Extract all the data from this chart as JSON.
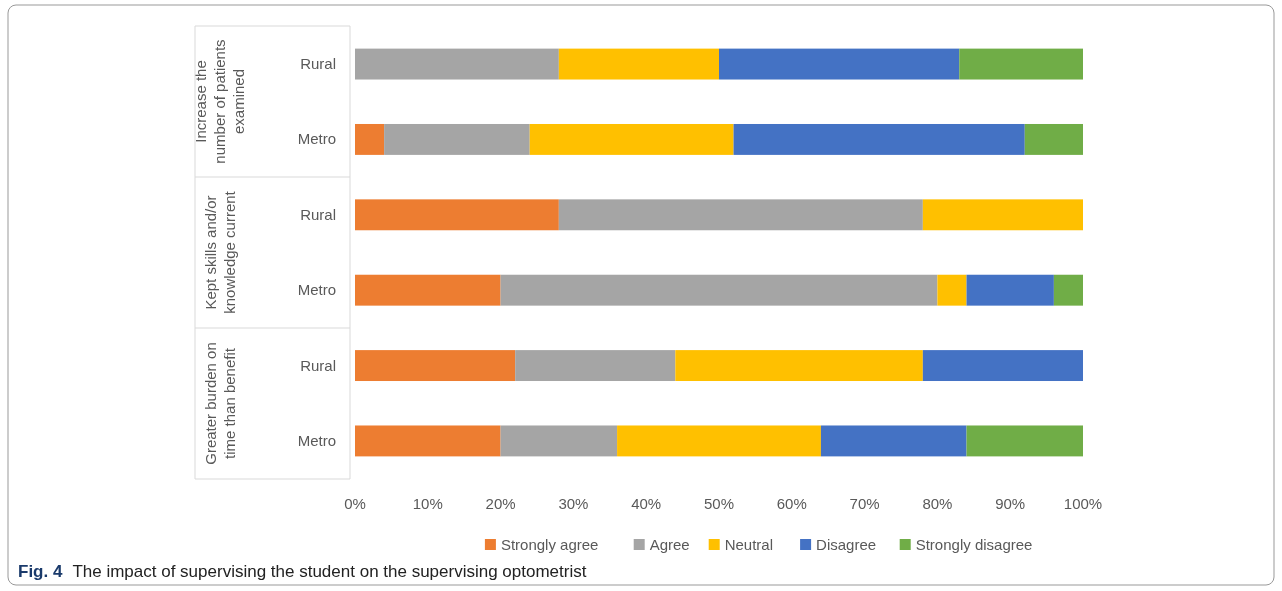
{
  "chart_data": {
    "type": "bar",
    "orientation": "horizontal",
    "stacked": true,
    "title": "Fig. 4",
    "subtitle": "The impact of supervising the student on the supervising optometrist",
    "categories": [
      "Rural",
      "Metro",
      "Rural",
      "Metro",
      "Rural",
      "Metro"
    ],
    "annotations": [
      "Increase the number of patients examined",
      "Kept skills and/or knowledge current",
      "Greater burden on time than benefit"
    ],
    "series": [
      {
        "name": "Strongly agree",
        "color": "#ed7d31",
        "values": [
          0,
          4,
          28,
          20,
          22,
          20
        ]
      },
      {
        "name": "Agree",
        "color": "#a5a5a5",
        "values": [
          28,
          20,
          50,
          60,
          22,
          16
        ]
      },
      {
        "name": "Neutral",
        "color": "#ffc000",
        "values": [
          22,
          28,
          22,
          4,
          34,
          28
        ]
      },
      {
        "name": "Disagree",
        "color": "#4472c4",
        "values": [
          33,
          40,
          0,
          12,
          22,
          20
        ]
      },
      {
        "name": "Strongly disagree",
        "color": "#70ad47",
        "values": [
          17,
          8,
          0,
          4,
          0,
          16
        ]
      }
    ],
    "xlim": [
      0,
      100
    ],
    "xticks": [
      {
        "value": 0,
        "label": "0%"
      },
      {
        "value": 10,
        "label": "10%"
      },
      {
        "value": 20,
        "label": "20%"
      },
      {
        "value": 30,
        "label": "30%"
      },
      {
        "value": 40,
        "label": "40%"
      },
      {
        "value": 50,
        "label": "50%"
      },
      {
        "value": 60,
        "label": "60%"
      },
      {
        "value": 70,
        "label": "70%"
      },
      {
        "value": 80,
        "label": "80%"
      },
      {
        "value": 90,
        "label": "90%"
      },
      {
        "value": 100,
        "label": "100%"
      }
    ],
    "legend": "bottom"
  }
}
